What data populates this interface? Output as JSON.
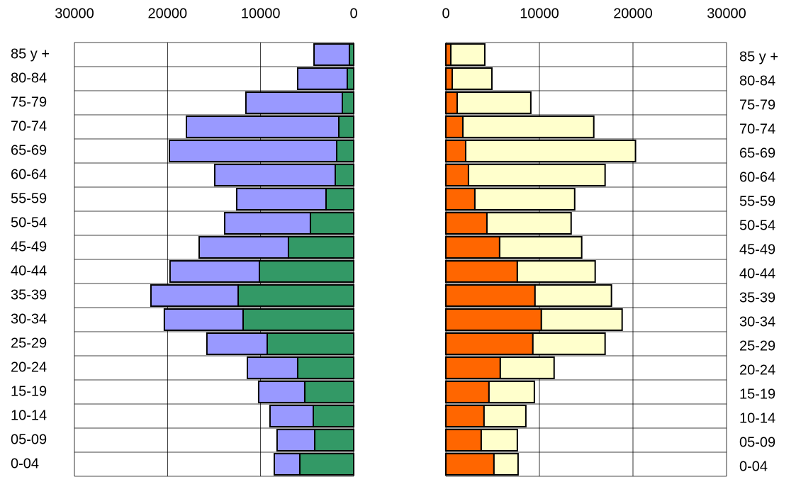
{
  "chart_data": [
    {
      "type": "bar",
      "orientation": "horizontal",
      "stacked": true,
      "grid": true,
      "categories": [
        "85 y +",
        "80-84",
        "75-79",
        "70-74",
        "65-69",
        "60-64",
        "55-59",
        "50-54",
        "45-49",
        "40-44",
        "35-39",
        "30-34",
        "25-29",
        "20-24",
        "15-19",
        "10-14",
        "05-09",
        "0-04"
      ],
      "series": [
        {
          "color": "#339966",
          "values": [
            460,
            690,
            1220,
            1600,
            1830,
            1980,
            2970,
            4650,
            7010,
            10130,
            12410,
            11880,
            9290,
            6020,
            5260,
            4340,
            4190,
            5790
          ]
        },
        {
          "color": "#9999ff",
          "values": [
            3800,
            5330,
            10360,
            16370,
            17970,
            12950,
            9600,
            9210,
            9590,
            9600,
            9370,
            8460,
            6480,
            5400,
            4950,
            4650,
            4040,
            2740
          ]
        }
      ],
      "xlim": [
        30000,
        0
      ],
      "xticks": [
        30000,
        20000,
        10000,
        0
      ]
    },
    {
      "type": "bar",
      "orientation": "horizontal",
      "stacked": true,
      "grid": true,
      "categories": [
        "85 y +",
        "80-84",
        "75-79",
        "70-74",
        "65-69",
        "60-64",
        "55-59",
        "50-54",
        "45-49",
        "40-44",
        "35-39",
        "30-34",
        "25-29",
        "20-24",
        "15-19",
        "10-14",
        "05-09",
        "0-04"
      ],
      "series": [
        {
          "color": "#ff6600",
          "values": [
            530,
            680,
            1210,
            1820,
            2120,
            2420,
            3100,
            4390,
            5750,
            7640,
            9530,
            10210,
            9300,
            5820,
            4610,
            4080,
            3780,
            5140
          ]
        },
        {
          "color": "#ffffcc",
          "values": [
            3630,
            4240,
            7870,
            13990,
            18150,
            14600,
            10670,
            9000,
            8770,
            8320,
            8170,
            8630,
            7720,
            5750,
            4850,
            4470,
            3860,
            2580
          ]
        }
      ],
      "xlim": [
        0,
        30000
      ],
      "xticks": [
        0,
        10000,
        20000,
        30000
      ]
    }
  ]
}
